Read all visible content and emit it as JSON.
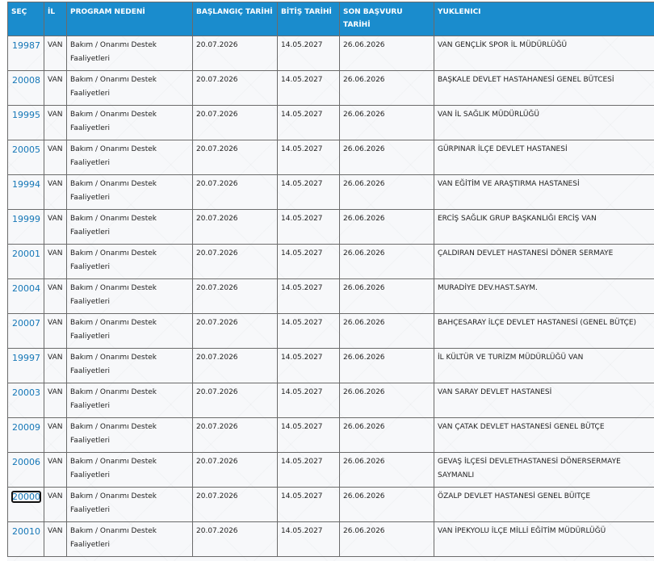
{
  "table": {
    "headers": {
      "sec": "SEÇ",
      "il": "İL",
      "program": "PROGRAM NEDENİ",
      "baslangic": "BAŞLANGIÇ TARİHİ",
      "bitis": "BİTİŞ TARİHİ",
      "son_basvuru": "SON BAŞVURU TARİHİ",
      "yuklenici": "YUKLENICI"
    },
    "rows": [
      {
        "id": "19987",
        "il": "VAN",
        "program": "Bakım / Onarımı Destek Faaliyetleri",
        "baslangic": "20.07.2026",
        "bitis": "14.05.2027",
        "son_basvuru": "26.06.2026",
        "yuklenici": "VAN GENÇLİK SPOR İL MÜDÜRLÜĞÜ"
      },
      {
        "id": "20008",
        "il": "VAN",
        "program": "Bakım / Onarımı Destek Faaliyetleri",
        "baslangic": "20.07.2026",
        "bitis": "14.05.2027",
        "son_basvuru": "26.06.2026",
        "yuklenici": "BAŞKALE DEVLET HASTAHANESİ GENEL BÜTCESİ"
      },
      {
        "id": "19995",
        "il": "VAN",
        "program": "Bakım / Onarımı Destek Faaliyetleri",
        "baslangic": "20.07.2026",
        "bitis": "14.05.2027",
        "son_basvuru": "26.06.2026",
        "yuklenici": "VAN İL SAĞLIK MÜDÜRLÜĞÜ"
      },
      {
        "id": "20005",
        "il": "VAN",
        "program": "Bakım / Onarımı Destek Faaliyetleri",
        "baslangic": "20.07.2026",
        "bitis": "14.05.2027",
        "son_basvuru": "26.06.2026",
        "yuklenici": "GÜRPINAR İLÇE DEVLET HASTANESİ"
      },
      {
        "id": "19994",
        "il": "VAN",
        "program": "Bakım / Onarımı Destek Faaliyetleri",
        "baslangic": "20.07.2026",
        "bitis": "14.05.2027",
        "son_basvuru": "26.06.2026",
        "yuklenici": "VAN EĞİTİM VE ARAŞTIRMA HASTANESİ"
      },
      {
        "id": "19999",
        "il": "VAN",
        "program": "Bakım / Onarımı Destek Faaliyetleri",
        "baslangic": "20.07.2026",
        "bitis": "14.05.2027",
        "son_basvuru": "26.06.2026",
        "yuklenici": "ERCİŞ SAĞLIK GRUP BAŞKANLIĞI ERCİŞ VAN"
      },
      {
        "id": "20001",
        "il": "VAN",
        "program": "Bakım / Onarımı Destek Faaliyetleri",
        "baslangic": "20.07.2026",
        "bitis": "14.05.2027",
        "son_basvuru": "26.06.2026",
        "yuklenici": "ÇALDIRAN DEVLET HASTANESİ DÖNER SERMAYE"
      },
      {
        "id": "20004",
        "il": "VAN",
        "program": "Bakım / Onarımı Destek Faaliyetleri",
        "baslangic": "20.07.2026",
        "bitis": "14.05.2027",
        "son_basvuru": "26.06.2026",
        "yuklenici": "MURADİYE DEV.HAST.SAYM."
      },
      {
        "id": "20007",
        "il": "VAN",
        "program": "Bakım / Onarımı Destek Faaliyetleri",
        "baslangic": "20.07.2026",
        "bitis": "14.05.2027",
        "son_basvuru": "26.06.2026",
        "yuklenici": "BAHÇESARAY İLÇE DEVLET HASTANESİ (GENEL BÜTÇE)"
      },
      {
        "id": "19997",
        "il": "VAN",
        "program": "Bakım / Onarımı Destek Faaliyetleri",
        "baslangic": "20.07.2026",
        "bitis": "14.05.2027",
        "son_basvuru": "26.06.2026",
        "yuklenici": "İL KÜLTÜR VE TURİZM MÜDÜRLÜĞÜ VAN"
      },
      {
        "id": "20003",
        "il": "VAN",
        "program": "Bakım / Onarımı Destek Faaliyetleri",
        "baslangic": "20.07.2026",
        "bitis": "14.05.2027",
        "son_basvuru": "26.06.2026",
        "yuklenici": "VAN SARAY DEVLET HASTANESİ"
      },
      {
        "id": "20009",
        "il": "VAN",
        "program": "Bakım / Onarımı Destek Faaliyetleri",
        "baslangic": "20.07.2026",
        "bitis": "14.05.2027",
        "son_basvuru": "26.06.2026",
        "yuklenici": "VAN ÇATAK DEVLET HASTANESİ GENEL BÜTÇE"
      },
      {
        "id": "20006",
        "il": "VAN",
        "program": "Bakım / Onarımı Destek Faaliyetleri",
        "baslangic": "20.07.2026",
        "bitis": "14.05.2027",
        "son_basvuru": "26.06.2026",
        "yuklenici": "GEVAŞ İLÇESİ DEVLETHASTANESİ DÖNERSERMAYE SAYMANLI"
      },
      {
        "id": "20000",
        "il": "VAN",
        "program": "Bakım / Onarımı Destek Faaliyetleri",
        "baslangic": "20.07.2026",
        "bitis": "14.05.2027",
        "son_basvuru": "26.06.2026",
        "yuklenici": "ÖZALP DEVLET HASTANESİ GENEL BÜITÇE",
        "focused": true
      },
      {
        "id": "20010",
        "il": "VAN",
        "program": "Bakım / Onarımı Destek Faaliyetleri",
        "baslangic": "20.07.2026",
        "bitis": "14.05.2027",
        "son_basvuru": "26.06.2026",
        "yuklenici": "VAN İPEKYOLU İLÇE MİLLİ EĞİTİM MÜDÜRLÜĞÜ"
      }
    ]
  },
  "colors": {
    "header_bg": "#1a8ccd",
    "header_text": "#ffffff",
    "link": "#1577b7",
    "border": "#6b6b6b"
  }
}
